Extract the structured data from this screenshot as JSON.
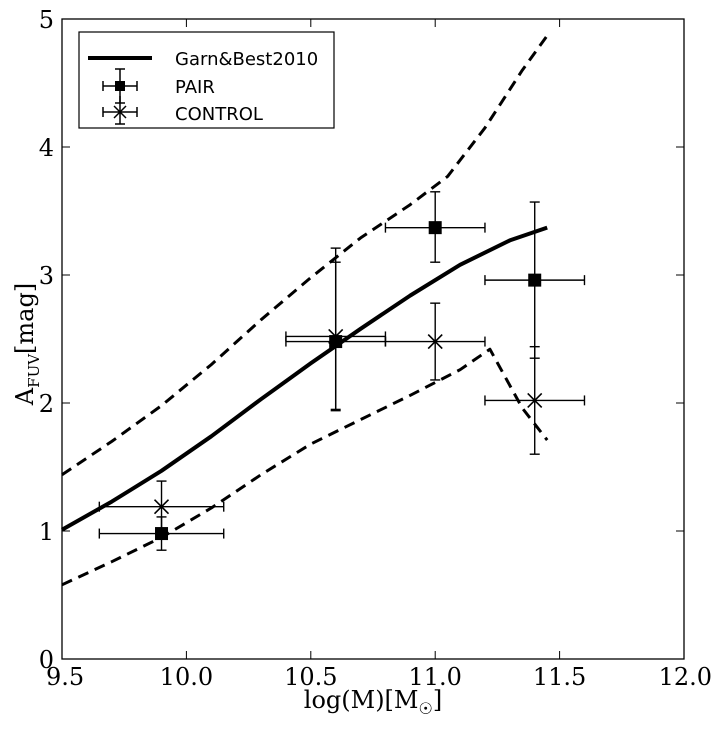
{
  "chart_data": {
    "type": "line",
    "xlabel_main": "log(M)[M",
    "xlabel_sub": "☉",
    "xlabel_close": "]",
    "ylabel_main": "A",
    "ylabel_sub": "FUV",
    "ylabel_rest": "[mag]",
    "xlim": [
      9.5,
      12.0
    ],
    "ylim": [
      0,
      5
    ],
    "xticks": [
      9.5,
      10.0,
      10.5,
      11.0,
      11.5,
      12.0
    ],
    "xtick_labels": [
      "9.5",
      "10.0",
      "10.5",
      "11.0",
      "11.5",
      "12.0"
    ],
    "yticks": [
      0,
      1,
      2,
      3,
      4,
      5
    ],
    "ytick_labels": [
      "0",
      "1",
      "2",
      "3",
      "4",
      "5"
    ],
    "legend": {
      "position": "top-left",
      "entries": [
        "Garn&Best2010",
        "PAIR",
        "CONTROL"
      ]
    },
    "series": [
      {
        "name": "Garn&Best2010",
        "kind": "line",
        "style": "solid",
        "x": [
          9.5,
          9.7,
          9.9,
          10.1,
          10.3,
          10.5,
          10.7,
          10.9,
          11.1,
          11.3,
          11.45
        ],
        "y": [
          1.01,
          1.23,
          1.47,
          1.74,
          2.03,
          2.31,
          2.58,
          2.84,
          3.08,
          3.27,
          3.37
        ]
      },
      {
        "name": "upper-bound",
        "kind": "line",
        "style": "dashed",
        "x": [
          9.5,
          9.7,
          9.9,
          10.1,
          10.3,
          10.5,
          10.7,
          10.9,
          11.05,
          11.2,
          11.35,
          11.45
        ],
        "y": [
          1.44,
          1.7,
          1.98,
          2.3,
          2.65,
          2.98,
          3.29,
          3.55,
          3.77,
          4.15,
          4.6,
          4.87
        ]
      },
      {
        "name": "lower-bound",
        "kind": "line",
        "style": "dashed",
        "x": [
          9.5,
          9.7,
          9.9,
          10.1,
          10.3,
          10.5,
          10.7,
          10.9,
          11.1,
          11.22,
          11.35,
          11.45
        ],
        "y": [
          0.58,
          0.76,
          0.95,
          1.18,
          1.44,
          1.68,
          1.87,
          2.06,
          2.26,
          2.42,
          1.96,
          1.71
        ]
      },
      {
        "name": "PAIR",
        "kind": "errorbar",
        "marker": "square",
        "points": [
          {
            "x": 9.9,
            "y": 0.98,
            "xerr": 0.25,
            "yerr_lo": 0.13,
            "yerr_hi": 0.13
          },
          {
            "x": 10.6,
            "y": 2.48,
            "xerr": 0.2,
            "yerr_lo": 0.53,
            "yerr_hi": 0.73
          },
          {
            "x": 11.0,
            "y": 3.37,
            "xerr": 0.2,
            "yerr_lo": 0.27,
            "yerr_hi": 0.28
          },
          {
            "x": 11.4,
            "y": 2.96,
            "xerr": 0.2,
            "yerr_lo": 0.61,
            "yerr_hi": 0.61
          }
        ]
      },
      {
        "name": "CONTROL",
        "kind": "errorbar",
        "marker": "x",
        "points": [
          {
            "x": 9.9,
            "y": 1.19,
            "xerr": 0.25,
            "yerr_lo": 0.2,
            "yerr_hi": 0.2
          },
          {
            "x": 10.6,
            "y": 2.52,
            "xerr": 0.2,
            "yerr_lo": 0.58,
            "yerr_hi": 0.58
          },
          {
            "x": 11.0,
            "y": 2.48,
            "xerr": 0.2,
            "yerr_lo": 0.3,
            "yerr_hi": 0.3
          },
          {
            "x": 11.4,
            "y": 2.02,
            "xerr": 0.2,
            "yerr_lo": 0.42,
            "yerr_hi": 0.42
          }
        ]
      }
    ]
  }
}
